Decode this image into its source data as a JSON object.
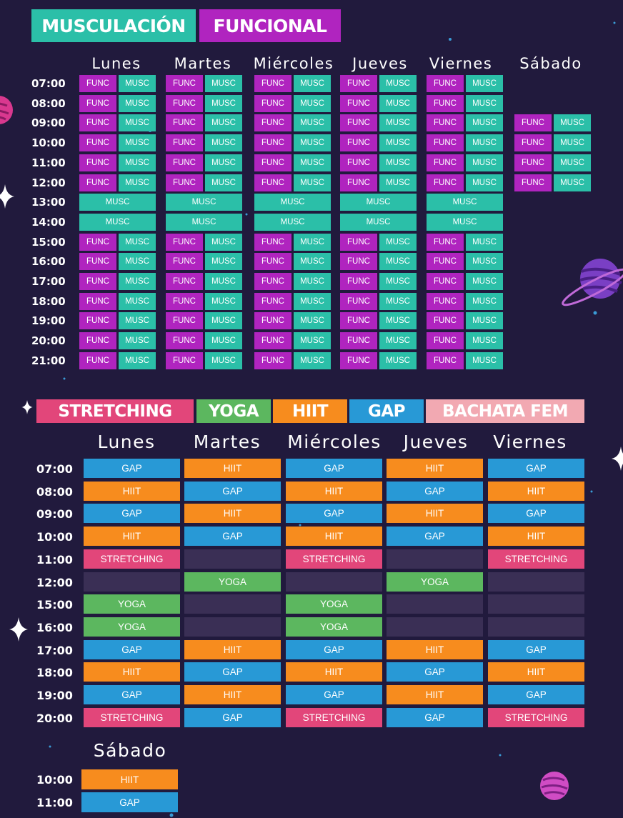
{
  "colors": {
    "background": "#211a3d",
    "musc": "#2bbfa8",
    "func": "#b024bf",
    "stretching": "#e2467a",
    "yoga": "#5cb75f",
    "hiit": "#f78c1e",
    "gap": "#2899d6",
    "bachata": "#f2a9b2",
    "empty": "#3a2f55"
  },
  "legend1": [
    {
      "key": "musc",
      "label": "MUSCULACIÓN"
    },
    {
      "key": "func",
      "label": "FUNCIONAL"
    }
  ],
  "grid1": {
    "days": [
      "Lunes",
      "Martes",
      "Miércoles",
      "Jueves",
      "Viernes",
      "Sábado"
    ],
    "times": [
      "07:00",
      "08:00",
      "09:00",
      "10:00",
      "11:00",
      "12:00",
      "13:00",
      "14:00",
      "15:00",
      "16:00",
      "17:00",
      "18:00",
      "19:00",
      "20:00",
      "21:00"
    ],
    "func_label": "FUNC",
    "musc_label": "MUSC",
    "row_type": [
      "pair",
      "pair",
      "pair",
      "pair",
      "pair",
      "pair",
      "musc",
      "musc",
      "pair",
      "pair",
      "pair",
      "pair",
      "pair",
      "pair",
      "pair"
    ],
    "saturday_times": [
      "09:00",
      "10:00",
      "11:00",
      "12:00"
    ]
  },
  "legend2": [
    {
      "key": "stretching",
      "label": "STRETCHING"
    },
    {
      "key": "yoga",
      "label": "YOGA"
    },
    {
      "key": "hiit",
      "label": "HIIT"
    },
    {
      "key": "gap",
      "label": "GAP"
    },
    {
      "key": "bachata",
      "label": "BACHATA FEM"
    }
  ],
  "grid2": {
    "days": [
      "Lunes",
      "Martes",
      "Miércoles",
      "Jueves",
      "Viernes"
    ],
    "times": [
      "07:00",
      "08:00",
      "09:00",
      "10:00",
      "11:00",
      "12:00",
      "15:00",
      "16:00",
      "17:00",
      "18:00",
      "19:00",
      "20:00"
    ],
    "rows": [
      [
        "GAP",
        "HIIT",
        "GAP",
        "HIIT",
        "GAP"
      ],
      [
        "HIIT",
        "GAP",
        "HIIT",
        "GAP",
        "HIIT"
      ],
      [
        "GAP",
        "HIIT",
        "GAP",
        "HIIT",
        "GAP"
      ],
      [
        "HIIT",
        "GAP",
        "HIIT",
        "GAP",
        "HIIT"
      ],
      [
        "STRETCHING",
        "",
        "STRETCHING",
        "",
        "STRETCHING"
      ],
      [
        "",
        "YOGA",
        "",
        "YOGA",
        ""
      ],
      [
        "YOGA",
        "",
        "YOGA",
        "",
        ""
      ],
      [
        "YOGA",
        "",
        "YOGA",
        "",
        ""
      ],
      [
        "GAP",
        "HIIT",
        "GAP",
        "HIIT",
        "GAP"
      ],
      [
        "HIIT",
        "GAP",
        "HIIT",
        "GAP",
        "HIIT"
      ],
      [
        "GAP",
        "HIIT",
        "GAP",
        "HIIT",
        "GAP"
      ],
      [
        "STRETCHING",
        "GAP",
        "STRETCHING",
        "GAP",
        "STRETCHING"
      ]
    ]
  },
  "saturday2": {
    "label": "Sábado",
    "rows": [
      {
        "time": "10:00",
        "class": "HIIT"
      },
      {
        "time": "11:00",
        "class": "GAP"
      }
    ]
  }
}
